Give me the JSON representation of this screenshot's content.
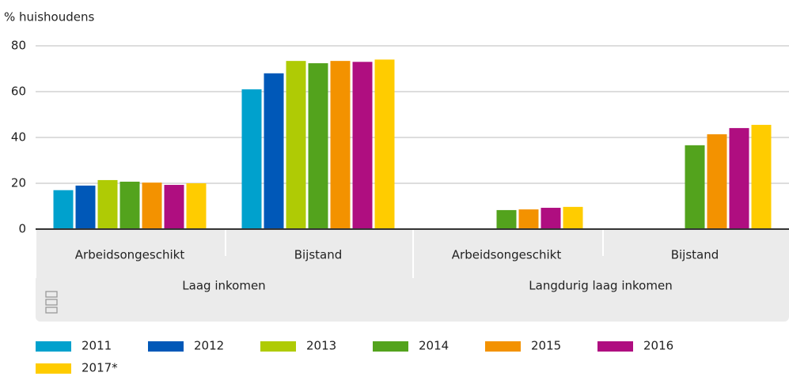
{
  "chart_data": {
    "type": "bar",
    "y_label": "% huishoudens",
    "categories": [
      "Arbeidsongeschikt",
      "Bijstand",
      "Arbeidsongeschikt",
      "Bijstand"
    ],
    "group_labels": [
      "Laag inkomen",
      "Langdurig laag inkomen"
    ],
    "series": [
      {
        "name": "2011",
        "color": "#00a1cd",
        "values": [
          17,
          61,
          null,
          null
        ]
      },
      {
        "name": "2012",
        "color": "#0058b8",
        "values": [
          19,
          68,
          null,
          null
        ]
      },
      {
        "name": "2013",
        "color": "#afcb05",
        "values": [
          21.4,
          73.4,
          null,
          null
        ]
      },
      {
        "name": "2014",
        "color": "#53a31d",
        "values": [
          20.7,
          72.4,
          8.3,
          36.6
        ]
      },
      {
        "name": "2015",
        "color": "#f39200",
        "values": [
          20.3,
          73.4,
          8.6,
          41.4
        ]
      },
      {
        "name": "2016",
        "color": "#af0e80",
        "values": [
          19.3,
          73,
          9.3,
          44.1
        ]
      },
      {
        "name": "2017*",
        "color": "#ffcc00",
        "values": [
          20,
          74,
          9.7,
          45.5
        ]
      }
    ],
    "ylim": [
      0,
      80
    ],
    "yticks": [
      0,
      20,
      40,
      60,
      80
    ],
    "grid": true
  }
}
